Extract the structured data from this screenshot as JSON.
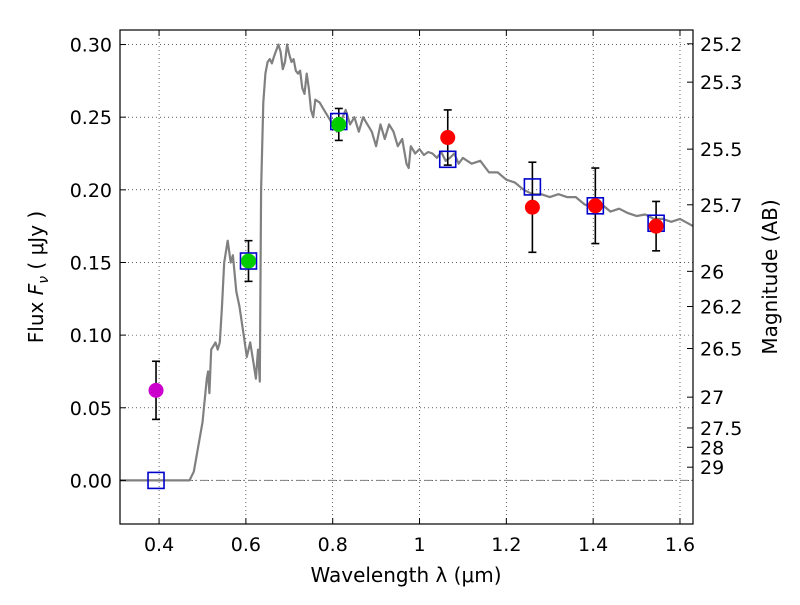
{
  "chart_data": {
    "type": "scatter",
    "xlabel": "Wavelength  λ (μm)",
    "ylabel_prefix": "Flux  ",
    "ylabel_var": "F",
    "ylabel_sub": "ν",
    "ylabel_unit": "  ( μJy )",
    "ylabel_right": "Magnitude (AB)",
    "xlim": [
      0.31,
      1.63
    ],
    "ylim": [
      -0.03,
      0.31
    ],
    "grid": true,
    "x_ticks": [
      0.4,
      0.6,
      0.8,
      1.0,
      1.2,
      1.4,
      1.6
    ],
    "x_tick_labels": [
      "0.4",
      "0.6",
      "0.8",
      "1",
      "1.2",
      "1.4",
      "1.6"
    ],
    "y_ticks": [
      0.0,
      0.05,
      0.1,
      0.15,
      0.2,
      0.25,
      0.3
    ],
    "y_tick_labels": [
      "0.00",
      "0.05",
      "0.10",
      "0.15",
      "0.20",
      "0.25",
      "0.30"
    ],
    "right_ticks": [
      {
        "label": "25.2",
        "flux": 0.3005
      },
      {
        "label": "25.3",
        "flux": 0.2741
      },
      {
        "label": "25.5",
        "flux": 0.228
      },
      {
        "label": "25.7",
        "flux": 0.1897
      },
      {
        "label": "26",
        "flux": 0.1439
      },
      {
        "label": "26.2",
        "flux": 0.1197
      },
      {
        "label": "26.5",
        "flux": 0.0908
      },
      {
        "label": "27",
        "flux": 0.0573
      },
      {
        "label": "27.5",
        "flux": 0.0361
      },
      {
        "label": "28",
        "flux": 0.0228
      },
      {
        "label": "29",
        "flux": 0.0091
      }
    ],
    "model_spectrum": {
      "name": "model",
      "color": "#808080",
      "x": [
        0.31,
        0.47,
        0.48,
        0.5,
        0.51,
        0.513,
        0.516,
        0.52,
        0.53,
        0.535,
        0.54,
        0.545,
        0.55,
        0.558,
        0.565,
        0.57,
        0.578,
        0.585,
        0.595,
        0.602,
        0.61,
        0.618,
        0.623,
        0.628,
        0.632,
        0.635,
        0.64,
        0.645,
        0.65,
        0.655,
        0.66,
        0.665,
        0.67,
        0.675,
        0.68,
        0.685,
        0.69,
        0.695,
        0.7,
        0.705,
        0.71,
        0.715,
        0.72,
        0.725,
        0.73,
        0.735,
        0.74,
        0.745,
        0.75,
        0.755,
        0.76,
        0.77,
        0.78,
        0.79,
        0.8,
        0.81,
        0.82,
        0.83,
        0.84,
        0.85,
        0.86,
        0.87,
        0.88,
        0.89,
        0.9,
        0.91,
        0.92,
        0.93,
        0.94,
        0.95,
        0.96,
        0.97,
        0.975,
        0.98,
        0.99,
        1.0,
        1.01,
        1.02,
        1.03,
        1.04,
        1.05,
        1.06,
        1.07,
        1.08,
        1.09,
        1.1,
        1.12,
        1.14,
        1.16,
        1.18,
        1.2,
        1.22,
        1.24,
        1.26,
        1.28,
        1.3,
        1.32,
        1.34,
        1.36,
        1.38,
        1.4,
        1.42,
        1.44,
        1.46,
        1.48,
        1.5,
        1.52,
        1.54,
        1.56,
        1.58,
        1.6,
        1.63
      ],
      "y": [
        0.0,
        0.0,
        0.006,
        0.04,
        0.07,
        0.075,
        0.06,
        0.09,
        0.095,
        0.09,
        0.095,
        0.12,
        0.15,
        0.165,
        0.15,
        0.155,
        0.13,
        0.12,
        0.1,
        0.085,
        0.095,
        0.08,
        0.07,
        0.09,
        0.068,
        0.2,
        0.26,
        0.28,
        0.288,
        0.29,
        0.287,
        0.292,
        0.296,
        0.3,
        0.295,
        0.283,
        0.288,
        0.3,
        0.293,
        0.288,
        0.29,
        0.282,
        0.28,
        0.282,
        0.27,
        0.266,
        0.28,
        0.27,
        0.255,
        0.25,
        0.262,
        0.26,
        0.255,
        0.25,
        0.245,
        0.24,
        0.248,
        0.255,
        0.245,
        0.25,
        0.24,
        0.25,
        0.245,
        0.24,
        0.23,
        0.245,
        0.235,
        0.245,
        0.24,
        0.23,
        0.235,
        0.218,
        0.215,
        0.23,
        0.225,
        0.228,
        0.224,
        0.226,
        0.225,
        0.222,
        0.226,
        0.22,
        0.222,
        0.225,
        0.218,
        0.222,
        0.218,
        0.22,
        0.212,
        0.212,
        0.207,
        0.205,
        0.2,
        0.197,
        0.197,
        0.195,
        0.197,
        0.195,
        0.195,
        0.19,
        0.188,
        0.19,
        0.185,
        0.187,
        0.184,
        0.182,
        0.183,
        0.18,
        0.18,
        0.178,
        0.18,
        0.175
      ]
    },
    "model_points": {
      "name": "model photometry",
      "color": "#0000cc",
      "x": [
        0.393,
        0.606,
        0.814,
        1.065,
        1.26,
        1.405,
        1.545
      ],
      "y": [
        0.0,
        0.151,
        0.247,
        0.221,
        0.202,
        0.189,
        0.177
      ]
    },
    "observed_points": [
      {
        "x": 0.393,
        "y": 0.062,
        "err": 0.02,
        "color": "#cc00cc"
      },
      {
        "x": 0.606,
        "y": 0.151,
        "err": 0.014,
        "color": "#00cc00"
      },
      {
        "x": 0.814,
        "y": 0.245,
        "err": 0.011,
        "color": "#00cc00"
      },
      {
        "x": 1.065,
        "y": 0.236,
        "err": 0.019,
        "color": "#ff0000"
      },
      {
        "x": 1.26,
        "y": 0.188,
        "err": 0.031,
        "color": "#ff0000"
      },
      {
        "x": 1.405,
        "y": 0.189,
        "err": 0.026,
        "color": "#ff0000"
      },
      {
        "x": 1.545,
        "y": 0.175,
        "err": 0.017,
        "color": "#ff0000"
      }
    ],
    "zero_line": {
      "y": 0.0,
      "color": "#808080",
      "style": "dashdot"
    }
  }
}
